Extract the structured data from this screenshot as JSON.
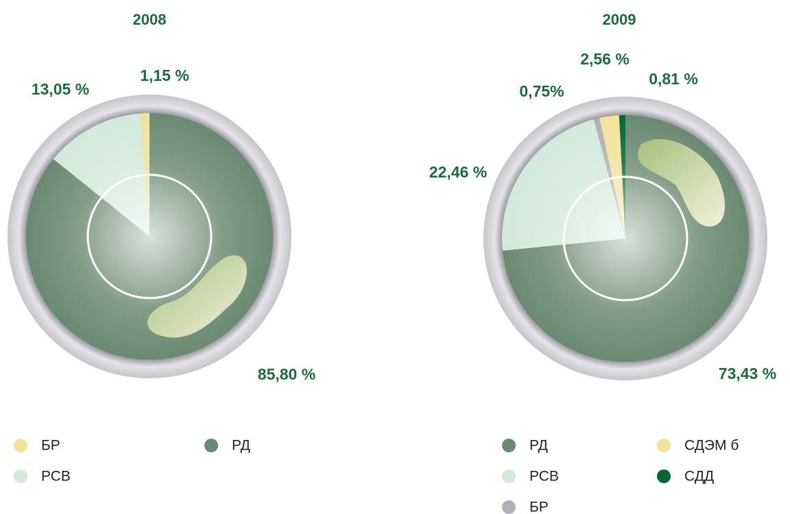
{
  "chart_data": [
    {
      "type": "pie",
      "title": "2008",
      "categories": [
        "РД",
        "РСВ",
        "БР"
      ],
      "values": [
        85.8,
        13.05,
        1.15
      ],
      "value_labels": [
        "85,80 %",
        "13,05 %",
        "1,15 %"
      ],
      "colors": [
        "#6b8a72",
        "#d3eadb",
        "#f2e29a"
      ]
    },
    {
      "type": "pie",
      "title": "2009",
      "categories": [
        "РД",
        "РСВ",
        "БР",
        "СДЭМ б",
        "СДД"
      ],
      "values": [
        73.43,
        22.46,
        0.75,
        2.56,
        0.81
      ],
      "value_labels": [
        "73,43 %",
        "22,46 %",
        "0,75%",
        "2,56 %",
        "0,81 %"
      ],
      "colors": [
        "#6b8a72",
        "#d3eadb",
        "#b0b0b8",
        "#f2e29a",
        "#006633"
      ]
    }
  ]
}
